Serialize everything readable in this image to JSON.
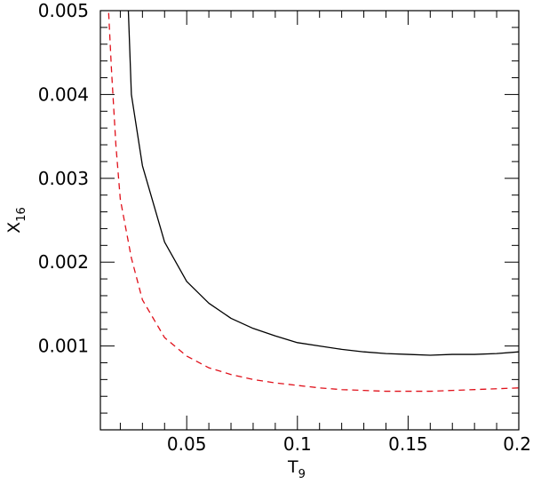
{
  "chart_data": {
    "type": "line",
    "xlabel": "T",
    "xlabel_sub": "9",
    "ylabel": "X",
    "ylabel_sub": "16",
    "xlim": [
      0.011,
      0.2
    ],
    "ylim": [
      0.0,
      0.005
    ],
    "x_ticks": [
      {
        "value": 0.05,
        "label": "0.05"
      },
      {
        "value": 0.1,
        "label": "0.1"
      },
      {
        "value": 0.15,
        "label": "0.15"
      },
      {
        "value": 0.2,
        "label": "0.2"
      }
    ],
    "y_ticks": [
      {
        "value": 0.001,
        "label": "0.001"
      },
      {
        "value": 0.002,
        "label": "0.002"
      },
      {
        "value": 0.003,
        "label": "0.003"
      },
      {
        "value": 0.004,
        "label": "0.004"
      },
      {
        "value": 0.005,
        "label": "0.005"
      }
    ],
    "x_minor_step": 0.01,
    "y_minor_step": 0.0002,
    "grid": false,
    "series": [
      {
        "style": "solid",
        "color": "#000000",
        "points": [
          [
            0.0235,
            0.0051
          ],
          [
            0.025,
            0.004
          ],
          [
            0.03,
            0.00315
          ],
          [
            0.04,
            0.00224
          ],
          [
            0.05,
            0.00177
          ],
          [
            0.06,
            0.00151
          ],
          [
            0.07,
            0.00133
          ],
          [
            0.08,
            0.00121
          ],
          [
            0.09,
            0.00112
          ],
          [
            0.1,
            0.00104
          ],
          [
            0.11,
            0.001
          ],
          [
            0.12,
            0.00096
          ],
          [
            0.13,
            0.00093
          ],
          [
            0.14,
            0.00091
          ],
          [
            0.15,
            0.0009
          ],
          [
            0.16,
            0.00089
          ],
          [
            0.17,
            0.0009
          ],
          [
            0.18,
            0.0009
          ],
          [
            0.19,
            0.00091
          ],
          [
            0.2,
            0.00093
          ]
        ]
      },
      {
        "style": "dashed",
        "color": "#e0101a",
        "points": [
          [
            0.0145,
            0.0051
          ],
          [
            0.016,
            0.0043
          ],
          [
            0.018,
            0.0034
          ],
          [
            0.02,
            0.00275
          ],
          [
            0.025,
            0.00205
          ],
          [
            0.03,
            0.00155
          ],
          [
            0.04,
            0.0011
          ],
          [
            0.05,
            0.00088
          ],
          [
            0.06,
            0.00074
          ],
          [
            0.07,
            0.00066
          ],
          [
            0.08,
            0.0006
          ],
          [
            0.09,
            0.00056
          ],
          [
            0.1,
            0.00053
          ],
          [
            0.11,
            0.0005
          ],
          [
            0.12,
            0.00048
          ],
          [
            0.13,
            0.00047
          ],
          [
            0.14,
            0.00046
          ],
          [
            0.15,
            0.00046
          ],
          [
            0.16,
            0.00046
          ],
          [
            0.17,
            0.00047
          ],
          [
            0.18,
            0.00048
          ],
          [
            0.19,
            0.00049
          ],
          [
            0.2,
            0.0005
          ]
        ]
      }
    ]
  }
}
